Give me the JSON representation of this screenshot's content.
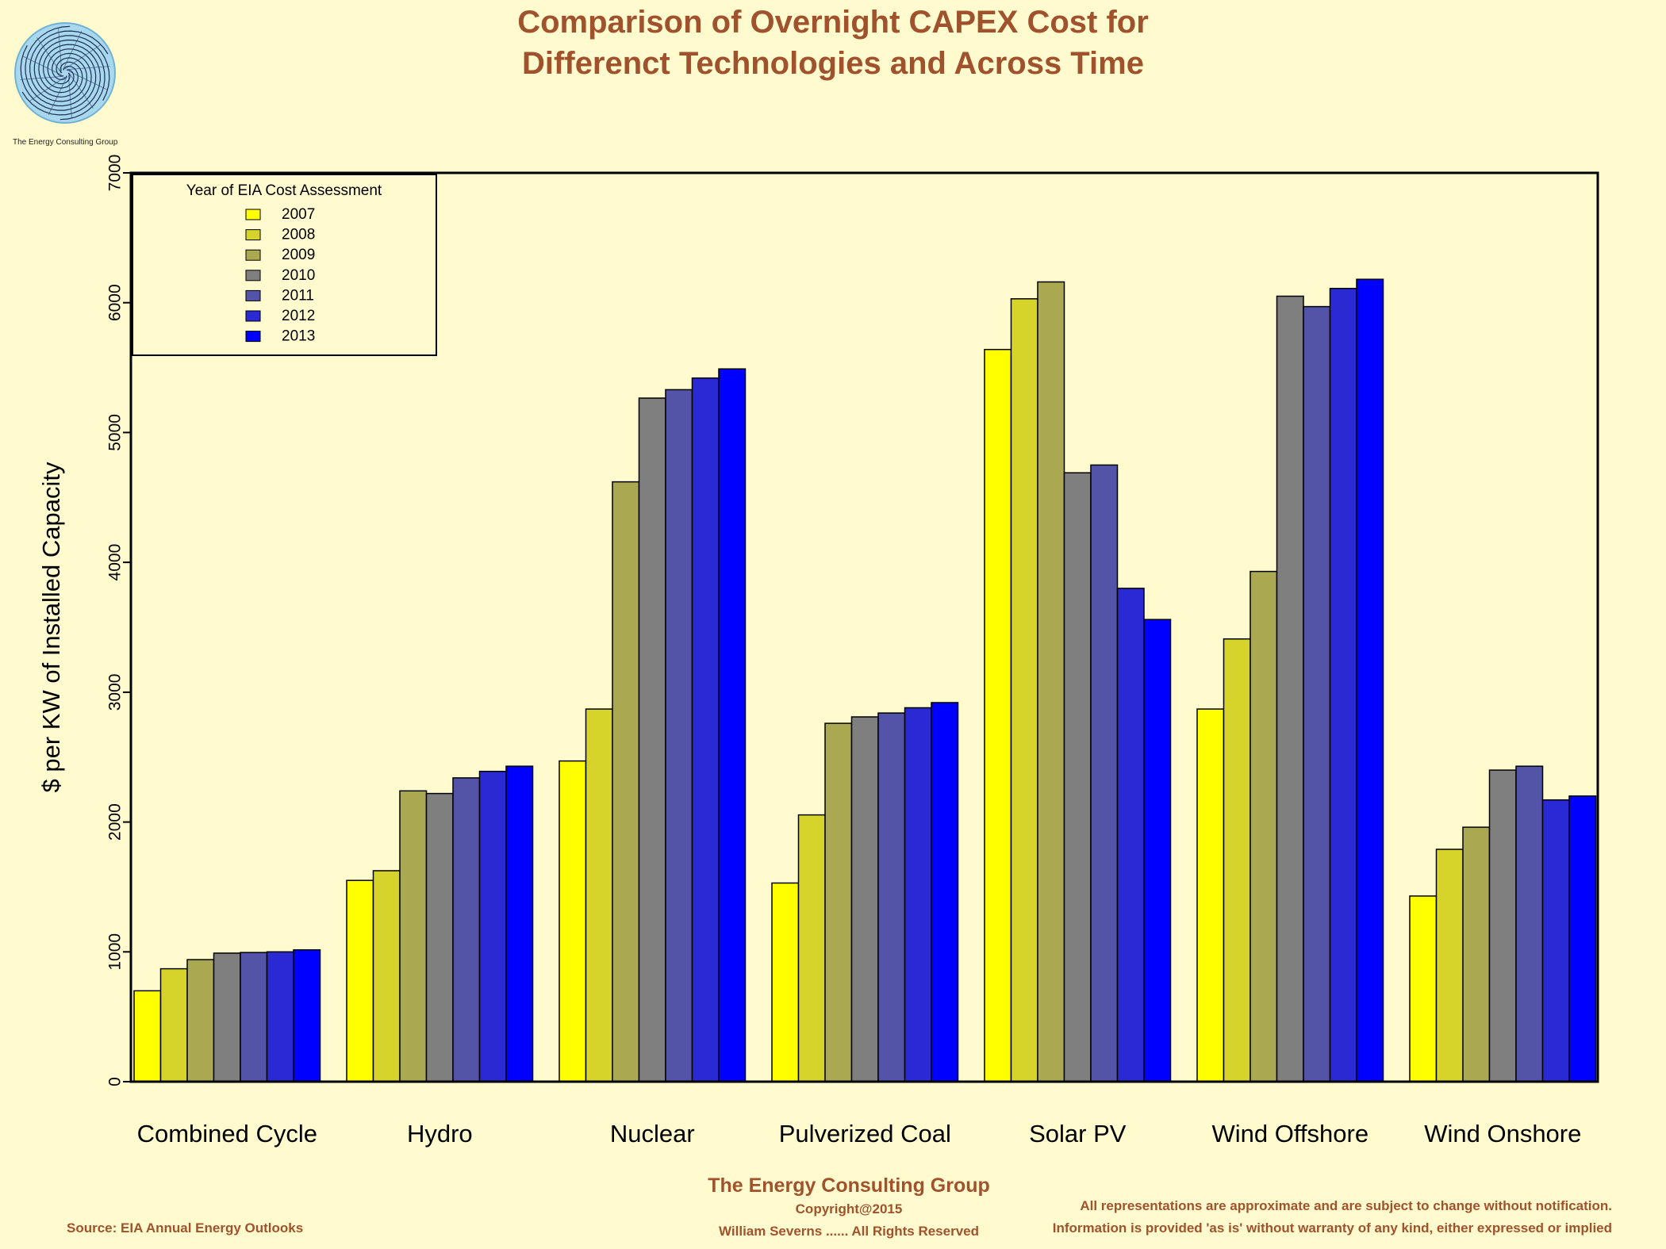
{
  "title": {
    "line1": "Comparison of Overnight CAPEX Cost for",
    "line2": "Differenct Technologies and Across Time"
  },
  "logo": {
    "caption": "The Energy Consulting Group"
  },
  "footer": {
    "company": "The Energy Consulting Group",
    "copyright": "Copyright@2015",
    "author": "William Severns ...... All Rights Reserved",
    "source": "Source: EIA Annual Energy Outlooks",
    "disclaimer_line1": "All representations are approximate and are subject to change without notification.",
    "disclaimer_line2": "Information is provided 'as is' without warranty of any kind, either expressed or implied"
  },
  "colors": {
    "background": "#FFFBCF",
    "title": "#A0522D",
    "footer": "#A0522D"
  },
  "chart_data": {
    "type": "bar",
    "ylabel": "$ per KW of Installed Capacity",
    "ylim": [
      0,
      7000
    ],
    "yticks": [
      "0",
      "1000",
      "2000",
      "3000",
      "4000",
      "5000",
      "6000",
      "7000"
    ],
    "grid": false,
    "legend": {
      "title": "Year of EIA Cost Assessment",
      "position": "top-left"
    },
    "categories": [
      "Combined Cycle",
      "Hydro",
      "Nuclear",
      "Pulverized Coal",
      "Solar PV",
      "Wind Offshore",
      "Wind Onshore"
    ],
    "series": [
      {
        "name": "2007",
        "color": "#FFFF00",
        "values": [
          700,
          1550,
          2470,
          1530,
          5640,
          2870,
          1430
        ]
      },
      {
        "name": "2008",
        "color": "#D6D42A",
        "values": [
          870,
          1625,
          2870,
          2055,
          6030,
          3410,
          1790
        ]
      },
      {
        "name": "2009",
        "color": "#ABA852",
        "values": [
          940,
          2240,
          4620,
          2760,
          6160,
          3930,
          1960
        ]
      },
      {
        "name": "2010",
        "color": "#7F7F7F",
        "values": [
          990,
          2220,
          5265,
          2810,
          4690,
          6050,
          2400
        ]
      },
      {
        "name": "2011",
        "color": "#5353A8",
        "values": [
          995,
          2340,
          5330,
          2840,
          4750,
          5970,
          2430
        ]
      },
      {
        "name": "2012",
        "color": "#2A2AD4",
        "values": [
          1000,
          2390,
          5420,
          2880,
          3800,
          6110,
          2170
        ]
      },
      {
        "name": "2013",
        "color": "#0000FF",
        "values": [
          1015,
          2430,
          5490,
          2920,
          3560,
          6180,
          2200
        ]
      }
    ]
  }
}
